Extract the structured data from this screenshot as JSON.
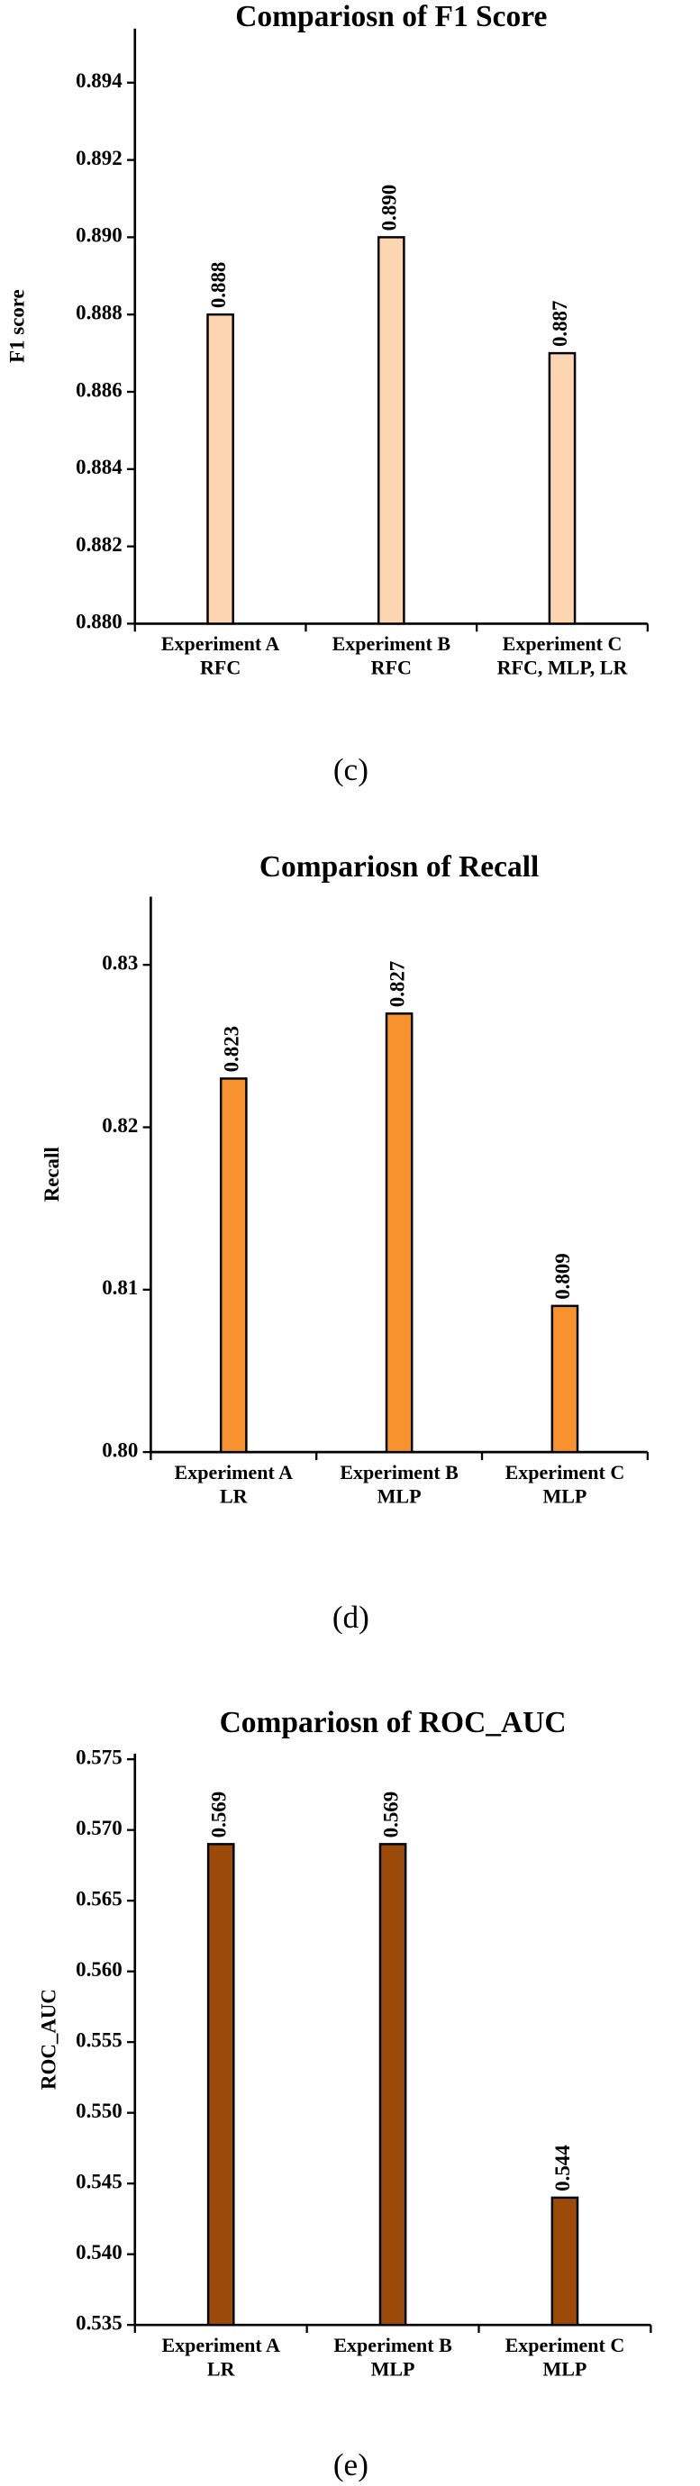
{
  "chart_data": [
    {
      "type": "bar",
      "title": "Compariosn of F1 Score",
      "y_label": "F1 score",
      "caption": "(c)",
      "categories": [
        [
          "Experiment A",
          "RFC"
        ],
        [
          "Experiment B",
          "RFC"
        ],
        [
          "Experiment C",
          "RFC, MLP, LR"
        ]
      ],
      "values": [
        0.888,
        0.89,
        0.887
      ],
      "value_labels": [
        "0.888",
        "0.890",
        "0.887"
      ],
      "color": "#fdd5b0",
      "ylim": [
        0.88,
        0.8954
      ],
      "yticks": [
        {
          "value": 0.88,
          "label": "0.880"
        },
        {
          "value": 0.882,
          "label": "0.882"
        },
        {
          "value": 0.884,
          "label": "0.884"
        },
        {
          "value": 0.886,
          "label": "0.886"
        },
        {
          "value": 0.888,
          "label": "0.888"
        },
        {
          "value": 0.89,
          "label": "0.890"
        },
        {
          "value": 0.892,
          "label": "0.892"
        },
        {
          "value": 0.894,
          "label": "0.894"
        }
      ]
    },
    {
      "type": "bar",
      "title": "Compariosn of Recall",
      "y_label": "Recall",
      "caption": "(d)",
      "categories": [
        [
          "Experiment A",
          "LR"
        ],
        [
          "Experiment B",
          "MLP"
        ],
        [
          "Experiment C",
          "MLP"
        ]
      ],
      "values": [
        0.823,
        0.827,
        0.809
      ],
      "color": "#f7922e",
      "ylim": [
        0.8,
        0.8342
      ],
      "yticks": [
        {
          "value": 0.8,
          "label": "0.80"
        },
        {
          "value": 0.81,
          "label": "0.81"
        },
        {
          "value": 0.82,
          "label": "0.82"
        },
        {
          "value": 0.83,
          "label": "0.83"
        }
      ]
    },
    {
      "type": "bar",
      "title": "Compariosn of ROC_AUC",
      "y_label": "ROC_AUC",
      "caption": "(e)",
      "categories": [
        [
          "Experiment A",
          "LR"
        ],
        [
          "Experiment B",
          "MLP"
        ],
        [
          "Experiment C",
          "MLP"
        ]
      ],
      "values": [
        0.569,
        0.569,
        0.544
      ],
      "color": "#9c4a0a",
      "ylim": [
        0.535,
        0.5754
      ],
      "yticks": [
        {
          "value": 0.535,
          "label": "0.535"
        },
        {
          "value": 0.54,
          "label": "0.540"
        },
        {
          "value": 0.545,
          "label": "0.545"
        },
        {
          "value": 0.55,
          "label": "0.550"
        },
        {
          "value": 0.555,
          "label": "0.555"
        },
        {
          "value": 0.56,
          "label": "0.560"
        },
        {
          "value": 0.565,
          "label": "0.565"
        },
        {
          "value": 0.57,
          "label": "0.570"
        },
        {
          "value": 0.575,
          "label": "0.575"
        }
      ]
    }
  ]
}
